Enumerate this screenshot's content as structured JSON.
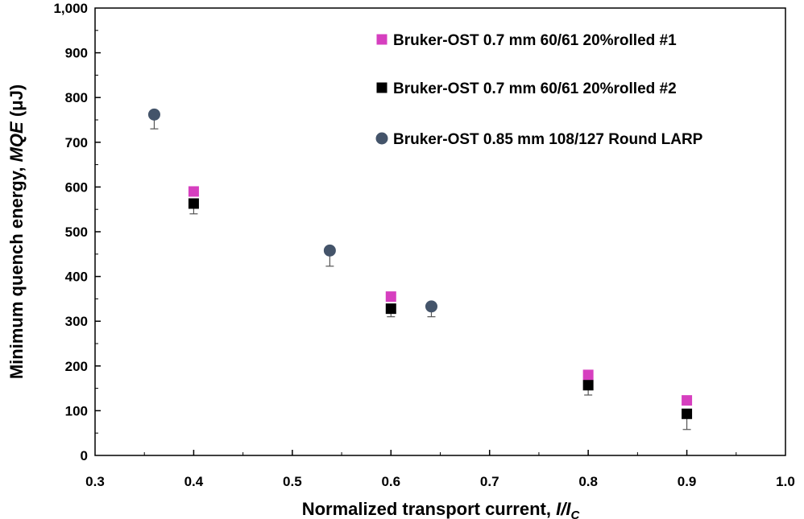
{
  "chart_data": {
    "type": "scatter",
    "title": "",
    "xlabel": {
      "main": "Normalized transport current, ",
      "italic": "I/I",
      "sub": "C"
    },
    "ylabel": {
      "main": "Minimum quench energy, ",
      "italic": "MQE",
      "unit": " (μJ)"
    },
    "xlim": [
      0.3,
      1.0
    ],
    "ylim": [
      0,
      1000
    ],
    "x_ticks": [
      "0.3",
      "0.4",
      "0.5",
      "0.6",
      "0.7",
      "0.8",
      "0.9",
      "1.0"
    ],
    "y_ticks": [
      "0",
      "100",
      "200",
      "300",
      "400",
      "500",
      "600",
      "700",
      "800",
      "900",
      "1,000"
    ],
    "grid": false,
    "legend_position": "top-right",
    "series": [
      {
        "name": "Bruker-OST 0.7 mm 60/61 20%rolled #1",
        "marker": "square",
        "color": "#d63fbf",
        "x": [
          0.4,
          0.6,
          0.8,
          0.9
        ],
        "y": [
          590,
          355,
          180,
          123
        ]
      },
      {
        "name": "Bruker-OST 0.7 mm 60/61 20%rolled #2",
        "marker": "square",
        "color": "#000000",
        "x": [
          0.4,
          0.6,
          0.8,
          0.9
        ],
        "y": [
          563,
          328,
          157,
          93
        ],
        "error_lower": [
          540,
          310,
          135,
          58
        ]
      },
      {
        "name": "Bruker-OST 0.85 mm 108/127 Round LARP",
        "marker": "circle",
        "color": "#44546a",
        "x": [
          0.36,
          0.538,
          0.641
        ],
        "y": [
          762,
          458,
          333
        ],
        "error_lower": [
          730,
          423,
          310
        ]
      }
    ]
  }
}
